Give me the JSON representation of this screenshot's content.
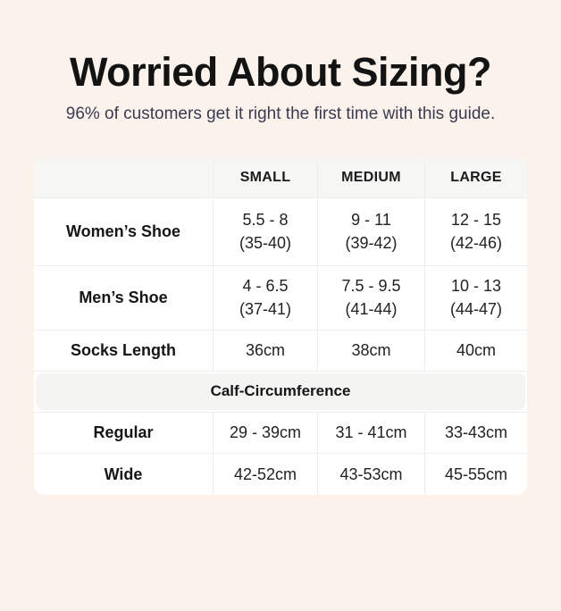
{
  "header": {
    "title": "Worried About Sizing?",
    "subtitle": "96% of customers get it right the first time with this guide."
  },
  "colors": {
    "page_background": "#fbf2ec",
    "table_background": "#ffffff",
    "header_row_background": "#f6f6f5",
    "section_band_background": "#f4f4f2",
    "divider": "#ededeb",
    "title_text": "#131313",
    "subtitle_text": "#3a3b51",
    "table_text": "#222222"
  },
  "chart_data": {
    "type": "table",
    "title": "Worried About Sizing?",
    "subtitle": "96% of customers get it right the first time with this guide.",
    "columns": [
      "",
      "SMALL",
      "MEDIUM",
      "LARGE"
    ],
    "rows": [
      {
        "label": "Women’s Shoe",
        "cells": [
          [
            "5.5 - 8",
            "(35-40)"
          ],
          [
            "9 - 11",
            "(39-42)"
          ],
          [
            "12 - 15",
            "(42-46)"
          ]
        ]
      },
      {
        "label": "Men’s Shoe",
        "cells": [
          [
            "4 - 6.5",
            "(37-41)"
          ],
          [
            "7.5 - 9.5",
            "(41-44)"
          ],
          [
            "10 - 13",
            "(44-47)"
          ]
        ]
      },
      {
        "label": "Socks Length",
        "cells": [
          [
            "36cm"
          ],
          [
            "38cm"
          ],
          [
            "40cm"
          ]
        ]
      },
      {
        "label": "Regular",
        "cells": [
          [
            "29 - 39cm"
          ],
          [
            "31 - 41cm"
          ],
          [
            "33-43cm"
          ]
        ]
      },
      {
        "label": "Wide",
        "cells": [
          [
            "42-52cm"
          ],
          [
            "43-53cm"
          ],
          [
            "45-55cm"
          ]
        ]
      }
    ],
    "section_header": "Calf-Circumference",
    "section_position": "after Socks Length row",
    "layout": {
      "grid": "4 columns",
      "section_row_spans_all_columns": true
    }
  }
}
